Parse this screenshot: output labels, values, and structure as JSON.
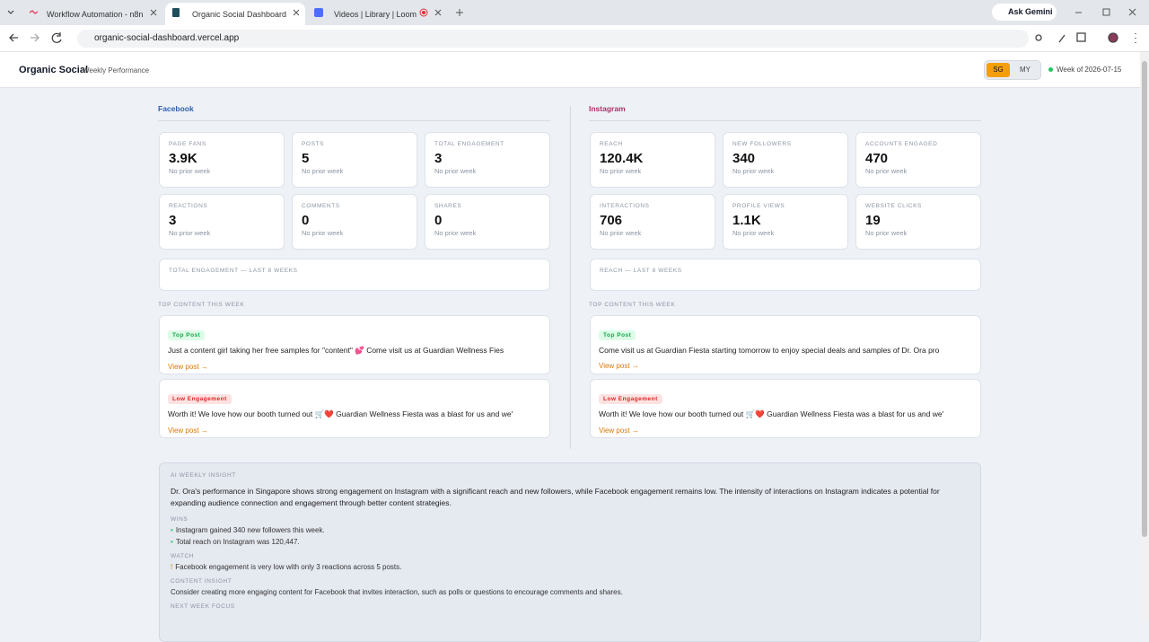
{
  "browser": {
    "tabs": [
      "Workflow Automation - n8n",
      "Organic Social Dashboard",
      "Videos | Library | Loom"
    ],
    "gemini": "Ask Gemini",
    "url": "organic-social-dashboard.vercel.app"
  },
  "header": {
    "title": "Organic Social",
    "subtitle": "Weekly Performance",
    "regions": [
      "SG",
      "MY"
    ],
    "week": "Week of 2026-07-15"
  },
  "platforms": [
    {
      "name": "Facebook",
      "color": "#2d5fb0",
      "metrics": [
        {
          "label": "Page Fans",
          "value": "3.9K",
          "note": "No prior week"
        },
        {
          "label": "Posts",
          "value": "5",
          "note": "No prior week"
        },
        {
          "label": "Total Engagement",
          "value": "3",
          "note": "No prior week"
        },
        {
          "label": "Reactions",
          "value": "3",
          "note": "No prior week"
        },
        {
          "label": "Comments",
          "value": "0",
          "note": "No prior week"
        },
        {
          "label": "Shares",
          "value": "0",
          "note": "No prior week"
        }
      ],
      "chart_label": "Total Engagement — Last 8 Weeks",
      "top_label": "Top Content This Week",
      "posts": [
        {
          "badge": "Top Post",
          "text": "Just a content girl taking her free samples for \"content\" 💕 Come visit us at Guardian Wellness Fies",
          "link": "View post →"
        },
        {
          "badge": "Low Engagement",
          "text": "Worth it! We love how our booth turned out 🛒❤️ Guardian Wellness Fiesta was a blast for us and we'",
          "link": "View post →"
        }
      ]
    },
    {
      "name": "Instagram",
      "color": "#b0306a",
      "metrics": [
        {
          "label": "Reach",
          "value": "120.4K",
          "note": "No prior week"
        },
        {
          "label": "New Followers",
          "value": "340",
          "note": "No prior week"
        },
        {
          "label": "Accounts Engaged",
          "value": "470",
          "note": "No prior week"
        },
        {
          "label": "Interactions",
          "value": "706",
          "note": "No prior week"
        },
        {
          "label": "Profile Views",
          "value": "1.1K",
          "note": "No prior week"
        },
        {
          "label": "Website Clicks",
          "value": "19",
          "note": "No prior week"
        }
      ],
      "chart_label": "Reach — Last 8 Weeks",
      "top_label": "Top Content This Week",
      "posts": [
        {
          "badge": "Top Post",
          "text": "Come visit us at Guardian Fiesta starting tomorrow to enjoy special deals and samples of Dr. Ora pro",
          "link": "View post →"
        },
        {
          "badge": "Low Engagement",
          "text": "Worth it! We love how our booth turned out 🛒❤️ Guardian Wellness Fiesta was a blast for us and we'",
          "link": "View post →"
        }
      ]
    }
  ],
  "insight": {
    "label": "AI Weekly Insight",
    "summary": "Dr. Ora's performance in Singapore shows strong engagement on Instagram with a significant reach and new followers, while Facebook engagement remains low. The intensity of interactions on Instagram indicates a potential for expanding audience connection and engagement through better content strategies.",
    "sections": [
      {
        "label": "Wins",
        "items": [
          {
            "marker": "•",
            "text": "Instagram gained 340 new followers this week."
          },
          {
            "marker": "•",
            "text": "Total reach on Instagram was 120,447."
          }
        ]
      },
      {
        "label": "Watch",
        "items": [
          {
            "marker": "!",
            "text": "Facebook engagement is very low with only 3 reactions across 5 posts."
          }
        ]
      },
      {
        "label": "Content Insight",
        "items": [
          {
            "text": "Consider creating more engaging content for Facebook that invites interaction, such as polls or questions to encourage comments and shares."
          }
        ]
      },
      {
        "label": "Next Week Focus",
        "items": []
      }
    ]
  }
}
